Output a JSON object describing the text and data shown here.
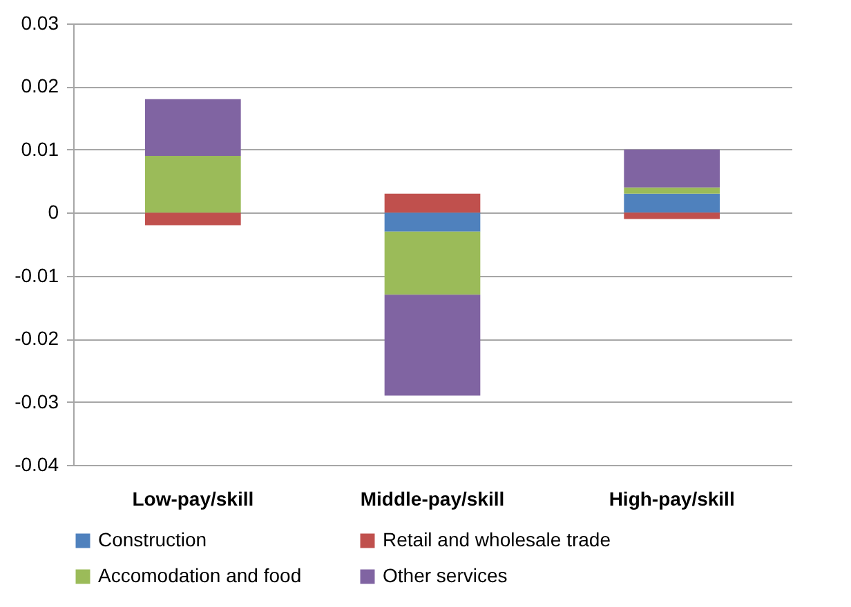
{
  "chart_data": {
    "type": "bar",
    "stacked": true,
    "categories": [
      "Low-pay/skill",
      "Middle-pay/skill",
      "High-pay/skill"
    ],
    "series": [
      {
        "name": "Construction",
        "color": "#4f81bd",
        "values": [
          0,
          -0.003,
          0.003
        ]
      },
      {
        "name": "Retail and wholesale trade",
        "color": "#c0504d",
        "values": [
          -0.002,
          0.003,
          -0.001
        ]
      },
      {
        "name": "Accomodation and food",
        "color": "#9bbb59",
        "values": [
          0.009,
          -0.01,
          0.001
        ]
      },
      {
        "name": "Other services",
        "color": "#8064a2",
        "values": [
          0.009,
          -0.016,
          0.006
        ]
      }
    ],
    "ylim": [
      -0.04,
      0.03
    ],
    "yticks": [
      -0.04,
      -0.03,
      -0.02,
      -0.01,
      0,
      0.01,
      0.02,
      0.03
    ],
    "grid": "y",
    "legend": "bottom"
  }
}
